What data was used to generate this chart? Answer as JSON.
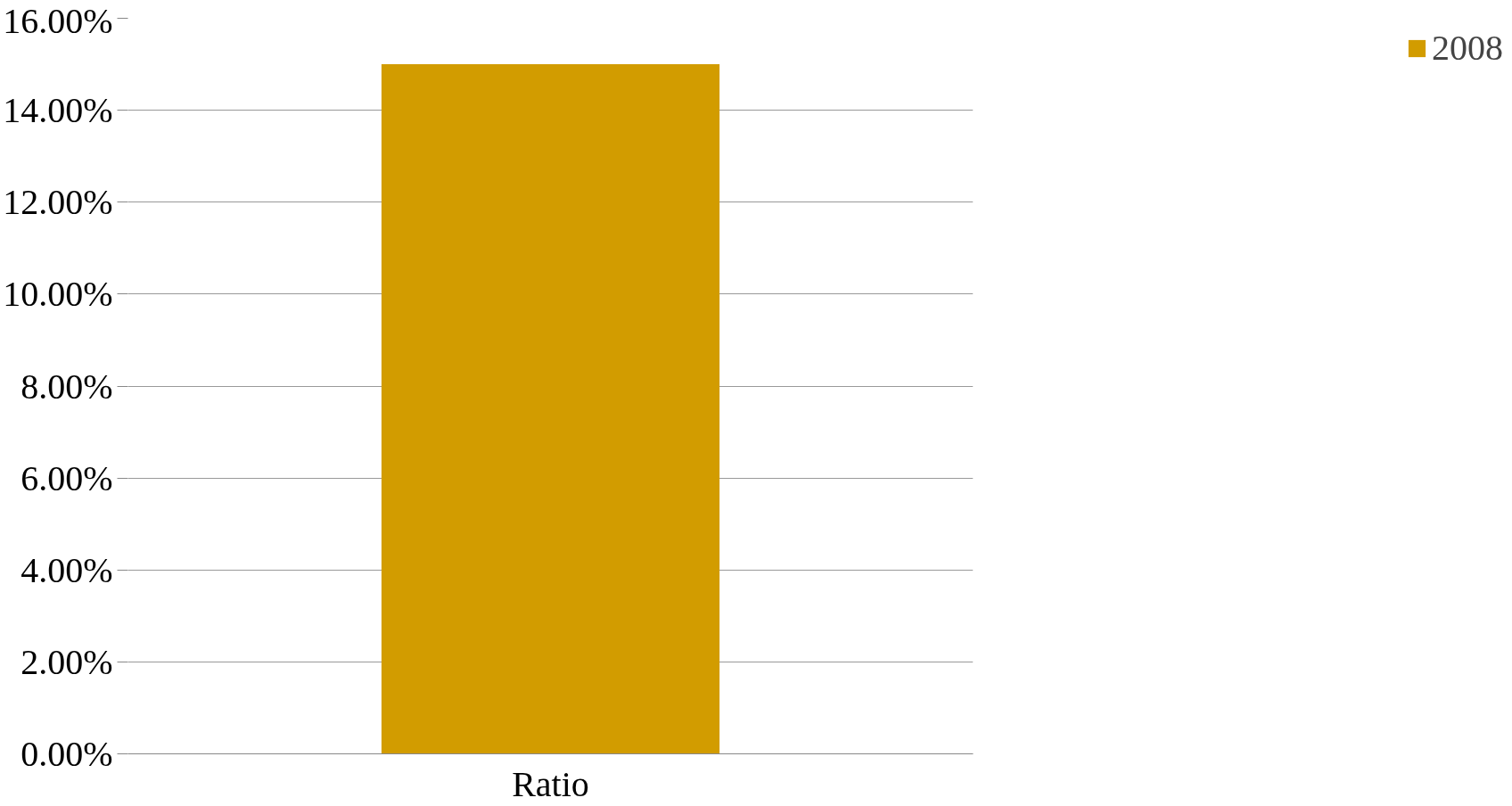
{
  "chart_data": {
    "type": "bar",
    "categories": [
      "Ratio"
    ],
    "series": [
      {
        "name": "2008",
        "color": "#d29c00",
        "values": [
          15
        ]
      }
    ],
    "ylim": [
      0,
      16
    ],
    "yticks": [
      {
        "value": 0,
        "label": "0.00%"
      },
      {
        "value": 2,
        "label": "2.00%"
      },
      {
        "value": 4,
        "label": "4.00%"
      },
      {
        "value": 6,
        "label": "6.00%"
      },
      {
        "value": 8,
        "label": "8.00%"
      },
      {
        "value": 10,
        "label": "10.00%"
      },
      {
        "value": 12,
        "label": "12.00%"
      },
      {
        "value": 14,
        "label": "14.00%"
      },
      {
        "value": 16,
        "label": "16.00%"
      }
    ],
    "grid": "y",
    "legend": "right"
  }
}
